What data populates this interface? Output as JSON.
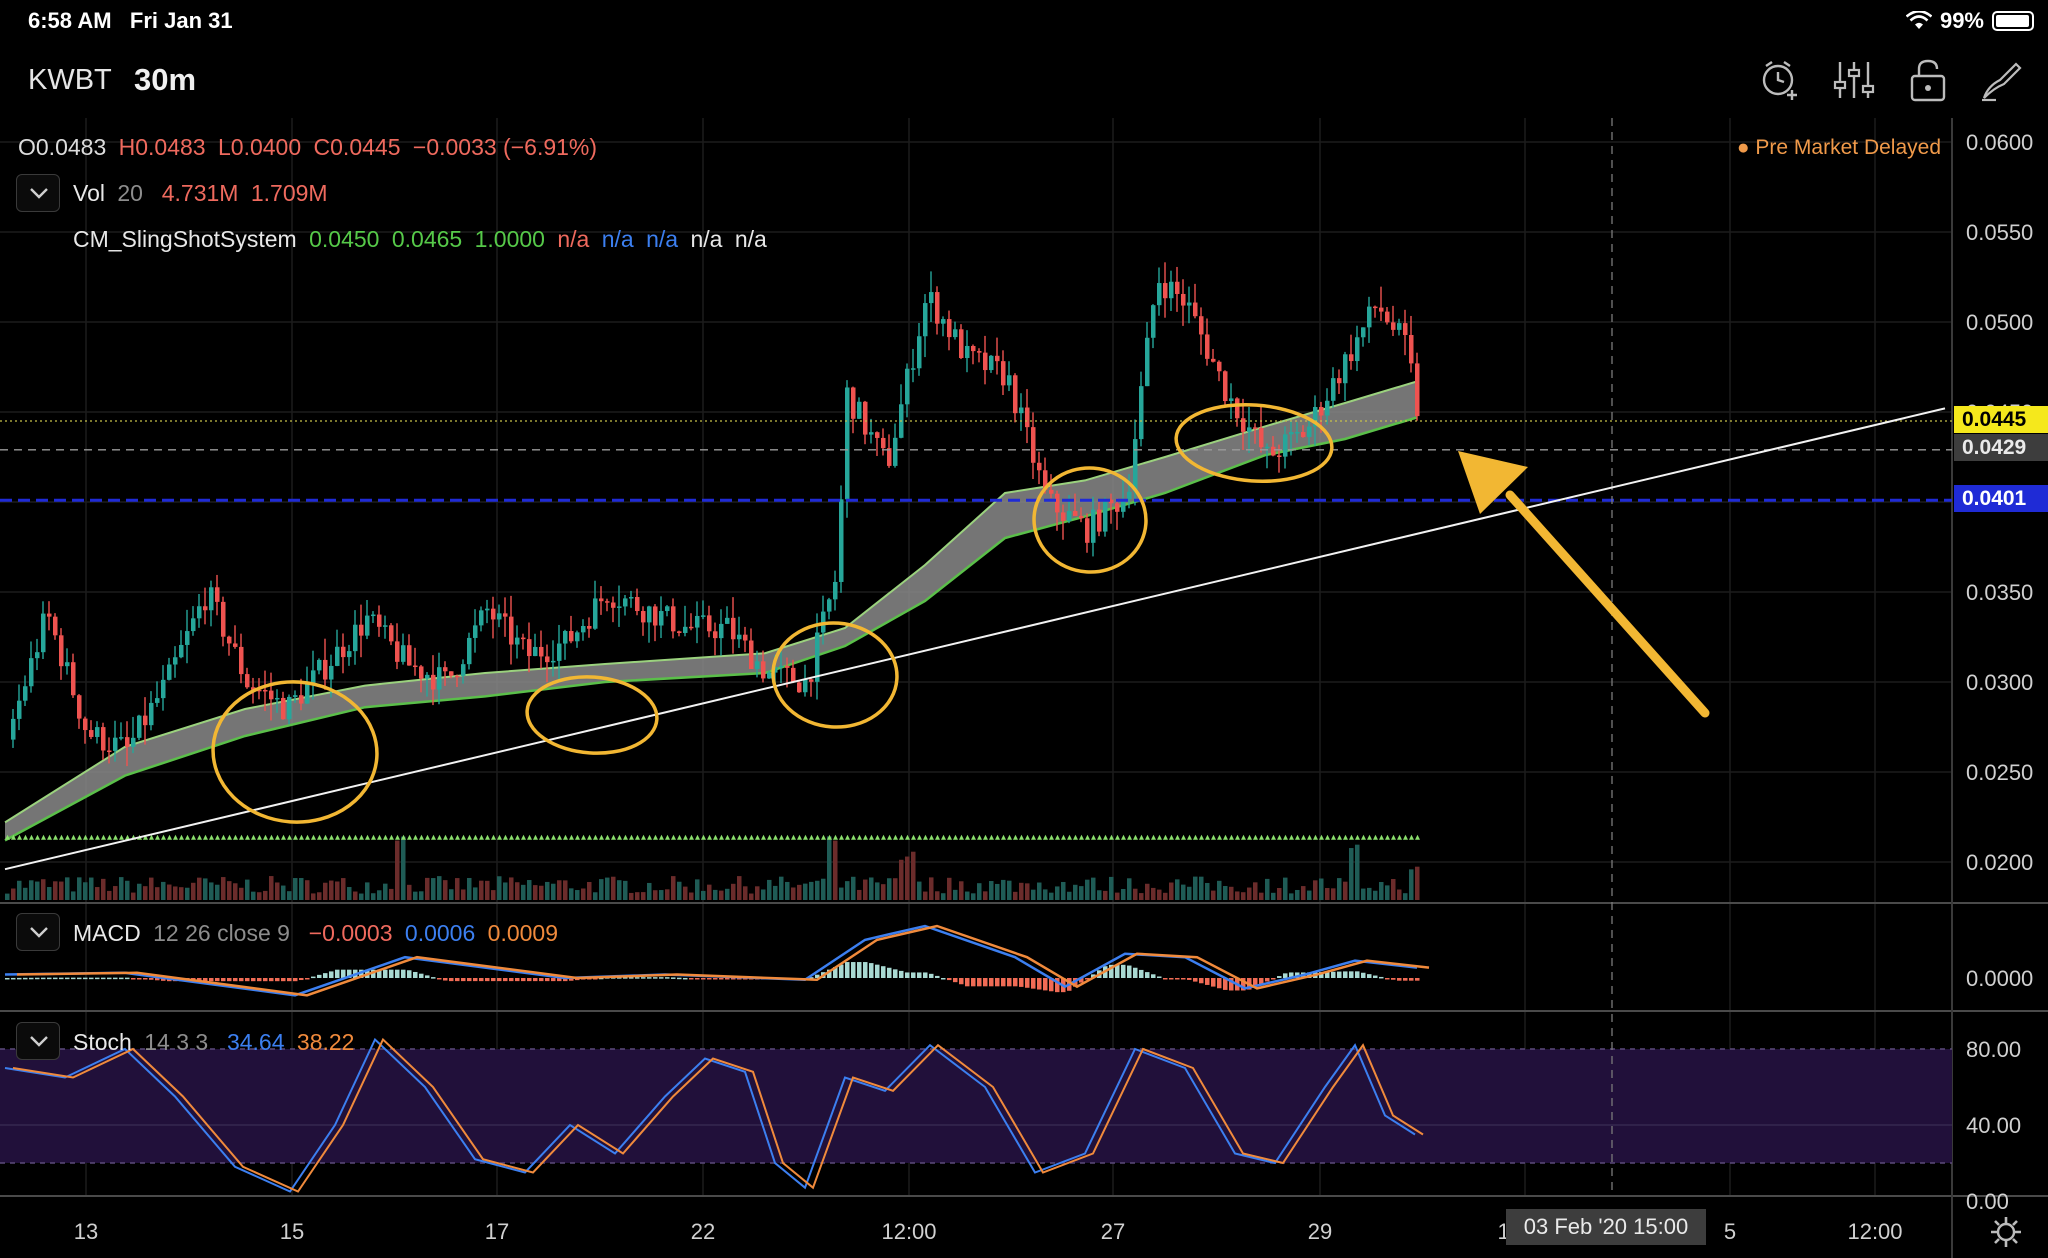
{
  "status_bar": {
    "time": "6:58 AM",
    "date": "Fri Jan 31",
    "battery": "99%"
  },
  "header": {
    "symbol": "KWBT",
    "interval": "30m",
    "icons": [
      "alarm-add-icon",
      "indicator-settings-icon",
      "lock-icon",
      "drawing-tool-icon"
    ]
  },
  "ohlc": {
    "open": "O0.0483",
    "high": "H0.0483",
    "low": "L0.0400",
    "close": "C0.0445",
    "change": "−0.0033 (−6.91%)"
  },
  "volume_legend": {
    "name": "Vol",
    "param": "20",
    "v1": "4.731M",
    "v2": "1.709M"
  },
  "sling_legend": {
    "name": "CM_SlingShotSystem",
    "v1": "0.0450",
    "v2": "0.0465",
    "v3": "1.0000",
    "n1": "n/a",
    "n2": "n/a",
    "n3": "n/a",
    "n4": "n/a",
    "n5": "n/a"
  },
  "macd_legend": {
    "name": "MACD",
    "params": "12 26 close 9",
    "v1": "−0.0003",
    "v2": "0.0006",
    "v3": "0.0009"
  },
  "stoch_legend": {
    "name": "Stoch",
    "params": "14 3 3",
    "k": "34.64",
    "d": "38.22"
  },
  "market_status": "Pre Market  Delayed",
  "price_badges": {
    "last": "0.0445",
    "crosshair": "0.0429",
    "level": "0.0401"
  },
  "crosshair_time": "03 Feb '20  15:00",
  "colors": {
    "up": "#26a69a",
    "down": "#ef5350",
    "last_badge": "#f5e81c",
    "level_line": "#1f2bd6",
    "annotation": "#f2b733",
    "ribbon": "#8a8a8a",
    "ribbon_edge": "#5bbf4a",
    "stoch_band": "#21103a"
  },
  "chart_data": {
    "type": "candlestick",
    "price_axis": {
      "ticks": [
        "0.0600",
        "0.0550",
        "0.0500",
        "0.0450",
        "0.0400",
        "0.0350",
        "0.0300",
        "0.0250",
        "0.0200"
      ],
      "range": [
        0.0178,
        0.0608
      ]
    },
    "macd_axis": {
      "ticks": [
        "0.0000"
      ]
    },
    "stoch_axis": {
      "ticks": [
        "80.00",
        "40.00",
        "0.00"
      ],
      "range": [
        0,
        100
      ],
      "band": [
        20,
        80
      ]
    },
    "time_axis": {
      "ticks": [
        "13",
        "15",
        "17",
        "22",
        "12:00",
        "27",
        "29",
        "12:00",
        "5",
        "12:00"
      ]
    },
    "key_points": [
      {
        "t": 0,
        "price": 0.0268
      },
      {
        "t": 40,
        "price": 0.0338
      },
      {
        "t": 80,
        "price": 0.0272
      },
      {
        "t": 120,
        "price": 0.0262
      },
      {
        "t": 160,
        "price": 0.03
      },
      {
        "t": 200,
        "price": 0.035
      },
      {
        "t": 240,
        "price": 0.03
      },
      {
        "t": 280,
        "price": 0.0285
      },
      {
        "t": 320,
        "price": 0.031
      },
      {
        "t": 360,
        "price": 0.0335
      },
      {
        "t": 400,
        "price": 0.031
      },
      {
        "t": 440,
        "price": 0.03
      },
      {
        "t": 480,
        "price": 0.034
      },
      {
        "t": 520,
        "price": 0.0315
      },
      {
        "t": 560,
        "price": 0.0322
      },
      {
        "t": 600,
        "price": 0.035
      },
      {
        "t": 640,
        "price": 0.034
      },
      {
        "t": 680,
        "price": 0.033
      },
      {
        "t": 720,
        "price": 0.033
      },
      {
        "t": 760,
        "price": 0.0305
      },
      {
        "t": 800,
        "price": 0.03
      },
      {
        "t": 830,
        "price": 0.036
      },
      {
        "t": 840,
        "price": 0.046
      },
      {
        "t": 880,
        "price": 0.042
      },
      {
        "t": 920,
        "price": 0.0515
      },
      {
        "t": 960,
        "price": 0.048
      },
      {
        "t": 1000,
        "price": 0.047
      },
      {
        "t": 1040,
        "price": 0.04
      },
      {
        "t": 1080,
        "price": 0.0385
      },
      {
        "t": 1120,
        "price": 0.0405
      },
      {
        "t": 1150,
        "price": 0.0525
      },
      {
        "t": 1180,
        "price": 0.051
      },
      {
        "t": 1220,
        "price": 0.046
      },
      {
        "t": 1260,
        "price": 0.0425
      },
      {
        "t": 1300,
        "price": 0.044
      },
      {
        "t": 1340,
        "price": 0.048
      },
      {
        "t": 1370,
        "price": 0.051
      },
      {
        "t": 1400,
        "price": 0.0485
      },
      {
        "t": 1412,
        "price": 0.0445
      }
    ],
    "moving_average_band": [
      {
        "t": 0,
        "low": 0.0212,
        "high": 0.0222
      },
      {
        "t": 120,
        "low": 0.0248,
        "high": 0.0264
      },
      {
        "t": 240,
        "low": 0.027,
        "high": 0.0285
      },
      {
        "t": 360,
        "low": 0.0286,
        "high": 0.0298
      },
      {
        "t": 480,
        "low": 0.0292,
        "high": 0.0305
      },
      {
        "t": 600,
        "low": 0.03,
        "high": 0.031
      },
      {
        "t": 760,
        "low": 0.0305,
        "high": 0.0316
      },
      {
        "t": 840,
        "low": 0.032,
        "high": 0.033
      },
      {
        "t": 920,
        "low": 0.0345,
        "high": 0.0365
      },
      {
        "t": 1000,
        "low": 0.038,
        "high": 0.0405
      },
      {
        "t": 1080,
        "low": 0.0392,
        "high": 0.0412
      },
      {
        "t": 1160,
        "low": 0.0405,
        "high": 0.0425
      },
      {
        "t": 1260,
        "low": 0.0426,
        "high": 0.0442
      },
      {
        "t": 1340,
        "low": 0.0435,
        "high": 0.0455
      },
      {
        "t": 1412,
        "low": 0.0447,
        "high": 0.0467
      }
    ],
    "volume_spikes": [
      {
        "t": 392,
        "v": 0.9
      },
      {
        "t": 826,
        "v": 1.0
      },
      {
        "t": 900,
        "v": 0.65
      },
      {
        "t": 1348,
        "v": 0.7
      },
      {
        "t": 1408,
        "v": 0.45
      }
    ],
    "trendline": {
      "from": {
        "t": 0,
        "price": 0.0196
      },
      "to": {
        "t": 1940,
        "price": 0.0452
      }
    },
    "support_level": 0.0401,
    "last_price": 0.0445,
    "crosshair_price": 0.0429,
    "triangle_level": 0.0214,
    "stoch_k": [
      {
        "t": 0,
        "v": 70
      },
      {
        "t": 60,
        "v": 65
      },
      {
        "t": 120,
        "v": 80
      },
      {
        "t": 170,
        "v": 55
      },
      {
        "t": 230,
        "v": 18
      },
      {
        "t": 285,
        "v": 5
      },
      {
        "t": 330,
        "v": 40
      },
      {
        "t": 370,
        "v": 85
      },
      {
        "t": 420,
        "v": 60
      },
      {
        "t": 470,
        "v": 22
      },
      {
        "t": 520,
        "v": 15
      },
      {
        "t": 565,
        "v": 40
      },
      {
        "t": 610,
        "v": 25
      },
      {
        "t": 660,
        "v": 55
      },
      {
        "t": 700,
        "v": 75
      },
      {
        "t": 740,
        "v": 68
      },
      {
        "t": 770,
        "v": 20
      },
      {
        "t": 800,
        "v": 7
      },
      {
        "t": 840,
        "v": 65
      },
      {
        "t": 880,
        "v": 58
      },
      {
        "t": 925,
        "v": 82
      },
      {
        "t": 980,
        "v": 60
      },
      {
        "t": 1030,
        "v": 15
      },
      {
        "t": 1080,
        "v": 25
      },
      {
        "t": 1130,
        "v": 80
      },
      {
        "t": 1180,
        "v": 70
      },
      {
        "t": 1230,
        "v": 25
      },
      {
        "t": 1270,
        "v": 20
      },
      {
        "t": 1320,
        "v": 60
      },
      {
        "t": 1350,
        "v": 82
      },
      {
        "t": 1380,
        "v": 45
      },
      {
        "t": 1410,
        "v": 35
      }
    ],
    "macd_line": [
      {
        "t": 0,
        "v": 0.0002
      },
      {
        "t": 120,
        "v": 0.0003
      },
      {
        "t": 290,
        "v": -0.001
      },
      {
        "t": 400,
        "v": 0.0012
      },
      {
        "t": 560,
        "v": 0.0
      },
      {
        "t": 660,
        "v": 0.0002
      },
      {
        "t": 800,
        "v": -0.0001
      },
      {
        "t": 860,
        "v": 0.0022
      },
      {
        "t": 920,
        "v": 0.003
      },
      {
        "t": 1010,
        "v": 0.0012
      },
      {
        "t": 1060,
        "v": -0.0005
      },
      {
        "t": 1120,
        "v": 0.0014
      },
      {
        "t": 1180,
        "v": 0.0012
      },
      {
        "t": 1240,
        "v": -0.0006
      },
      {
        "t": 1300,
        "v": 0.0002
      },
      {
        "t": 1350,
        "v": 0.001
      },
      {
        "t": 1412,
        "v": 0.0006
      }
    ]
  }
}
